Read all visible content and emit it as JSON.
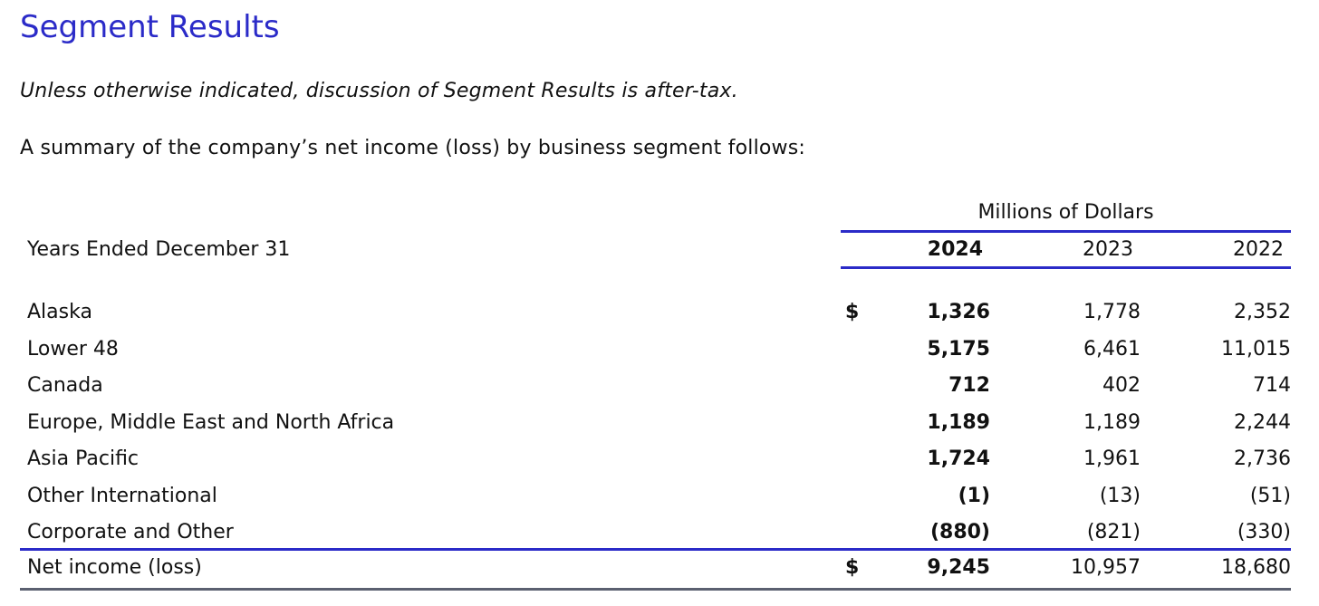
{
  "heading": "Segment Results",
  "note": "Unless otherwise indicated, discussion of Segment Results is after-tax.",
  "intro": "A summary of the company’s net income (loss) by business segment follows:",
  "table": {
    "units": "Millions of Dollars",
    "row_header": "Years Ended December 31",
    "years": [
      "2024",
      "2023",
      "2022"
    ],
    "rows": [
      {
        "label": "Alaska",
        "currency": "$",
        "values": [
          "1,326",
          "1,778",
          "2,352"
        ]
      },
      {
        "label": "Lower 48",
        "currency": "",
        "values": [
          "5,175",
          "6,461",
          "11,015"
        ]
      },
      {
        "label": "Canada",
        "currency": "",
        "values": [
          "712",
          "402",
          "714"
        ]
      },
      {
        "label": "Europe, Middle East and North Africa",
        "currency": "",
        "values": [
          "1,189",
          "1,189",
          "2,244"
        ]
      },
      {
        "label": "Asia Pacific",
        "currency": "",
        "values": [
          "1,724",
          "1,961",
          "2,736"
        ]
      },
      {
        "label": "Other International",
        "currency": "",
        "values": [
          "(1)",
          "(13)",
          "(51)"
        ]
      },
      {
        "label": "Corporate and Other",
        "currency": "",
        "values": [
          "(880)",
          "(821)",
          "(330)"
        ]
      }
    ],
    "total": {
      "label": "Net income (loss)",
      "currency": "$",
      "values": [
        "9,245",
        "10,957",
        "18,680"
      ]
    }
  },
  "colors": {
    "heading": "#2b2bc8",
    "rule_blue": "#2b2bc8",
    "rule_gray": "#5b6070"
  }
}
